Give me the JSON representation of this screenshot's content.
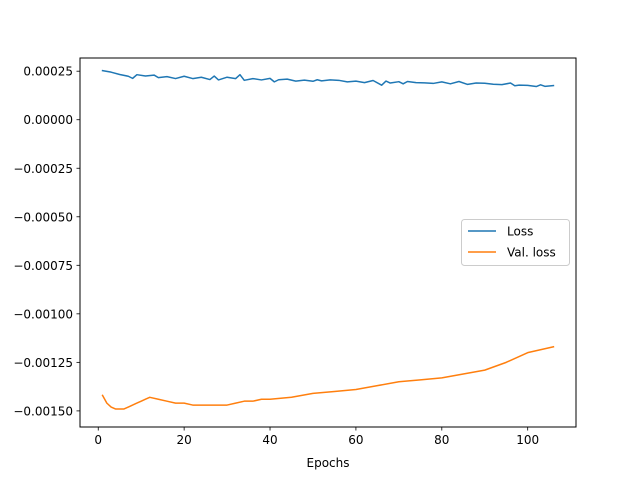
{
  "chart_data": {
    "type": "line",
    "xlabel": "Epochs",
    "ylabel": "",
    "xlim": [
      -4.25,
      111.25
    ],
    "ylim": [
      -0.001583,
      0.000318
    ],
    "x_ticks": [
      0,
      20,
      40,
      60,
      80,
      100
    ],
    "x_tick_labels": [
      "0",
      "20",
      "40",
      "60",
      "80",
      "100"
    ],
    "y_ticks": [
      0.00025,
      0.0,
      -0.00025,
      -0.0005,
      -0.00075,
      -0.001,
      -0.00125,
      -0.0015
    ],
    "y_tick_labels": [
      "0.00025",
      "0.00000",
      "−0.00025",
      "−0.00050",
      "−0.00075",
      "−0.00100",
      "−0.00125",
      "−0.00150"
    ],
    "grid": false,
    "legend_position": "center-right",
    "series": [
      {
        "name": "Loss",
        "color": "#1f77b4",
        "x": [
          1,
          3,
          5,
          7,
          8,
          9,
          11,
          13,
          14,
          16,
          18,
          20,
          22,
          24,
          26,
          27,
          28,
          30,
          32,
          33,
          34,
          36,
          38,
          40,
          41,
          42,
          44,
          46,
          48,
          50,
          51,
          52,
          54,
          56,
          58,
          60,
          62,
          64,
          66,
          67,
          68,
          70,
          71,
          72,
          74,
          76,
          78,
          80,
          82,
          84,
          86,
          88,
          90,
          92,
          94,
          96,
          97,
          98,
          100,
          102,
          103,
          104,
          106
        ],
        "values": [
          0.000253,
          0.000245,
          0.000233,
          0.000224,
          0.000213,
          0.000232,
          0.000225,
          0.00023,
          0.000217,
          0.000222,
          0.000212,
          0.000224,
          0.000212,
          0.000219,
          0.000207,
          0.000225,
          0.000205,
          0.000219,
          0.000212,
          0.000232,
          0.000203,
          0.000212,
          0.000205,
          0.000213,
          0.000195,
          0.000206,
          0.000209,
          0.000199,
          0.000204,
          0.000198,
          0.000206,
          0.0002,
          0.000205,
          0.000203,
          0.000195,
          0.000199,
          0.000191,
          0.000202,
          0.000178,
          0.000199,
          0.000189,
          0.000196,
          0.000185,
          0.000197,
          0.000191,
          0.00019,
          0.000187,
          0.000195,
          0.000185,
          0.000197,
          0.000182,
          0.000189,
          0.000188,
          0.000183,
          0.000181,
          0.000189,
          0.000175,
          0.000178,
          0.000177,
          0.000171,
          0.00018,
          0.000172,
          0.000176
        ]
      },
      {
        "name": "Val. loss",
        "color": "#ff7f0e",
        "x": [
          1,
          2,
          3,
          4,
          5,
          6,
          7,
          8,
          9,
          10,
          11,
          12,
          14,
          16,
          18,
          20,
          22,
          24,
          26,
          28,
          30,
          32,
          34,
          36,
          38,
          40,
          45,
          50,
          55,
          60,
          65,
          70,
          75,
          80,
          85,
          90,
          95,
          100,
          106
        ],
        "values": [
          -0.00142,
          -0.00146,
          -0.00148,
          -0.00149,
          -0.00149,
          -0.00149,
          -0.00148,
          -0.00147,
          -0.00146,
          -0.00145,
          -0.00144,
          -0.00143,
          -0.00144,
          -0.00145,
          -0.00146,
          -0.00146,
          -0.00147,
          -0.00147,
          -0.00147,
          -0.00147,
          -0.00147,
          -0.00146,
          -0.00145,
          -0.00145,
          -0.00144,
          -0.00144,
          -0.00143,
          -0.00141,
          -0.0014,
          -0.00139,
          -0.00137,
          -0.00135,
          -0.00134,
          -0.00133,
          -0.00131,
          -0.00129,
          -0.00125,
          -0.0012,
          -0.00117
        ]
      }
    ]
  }
}
